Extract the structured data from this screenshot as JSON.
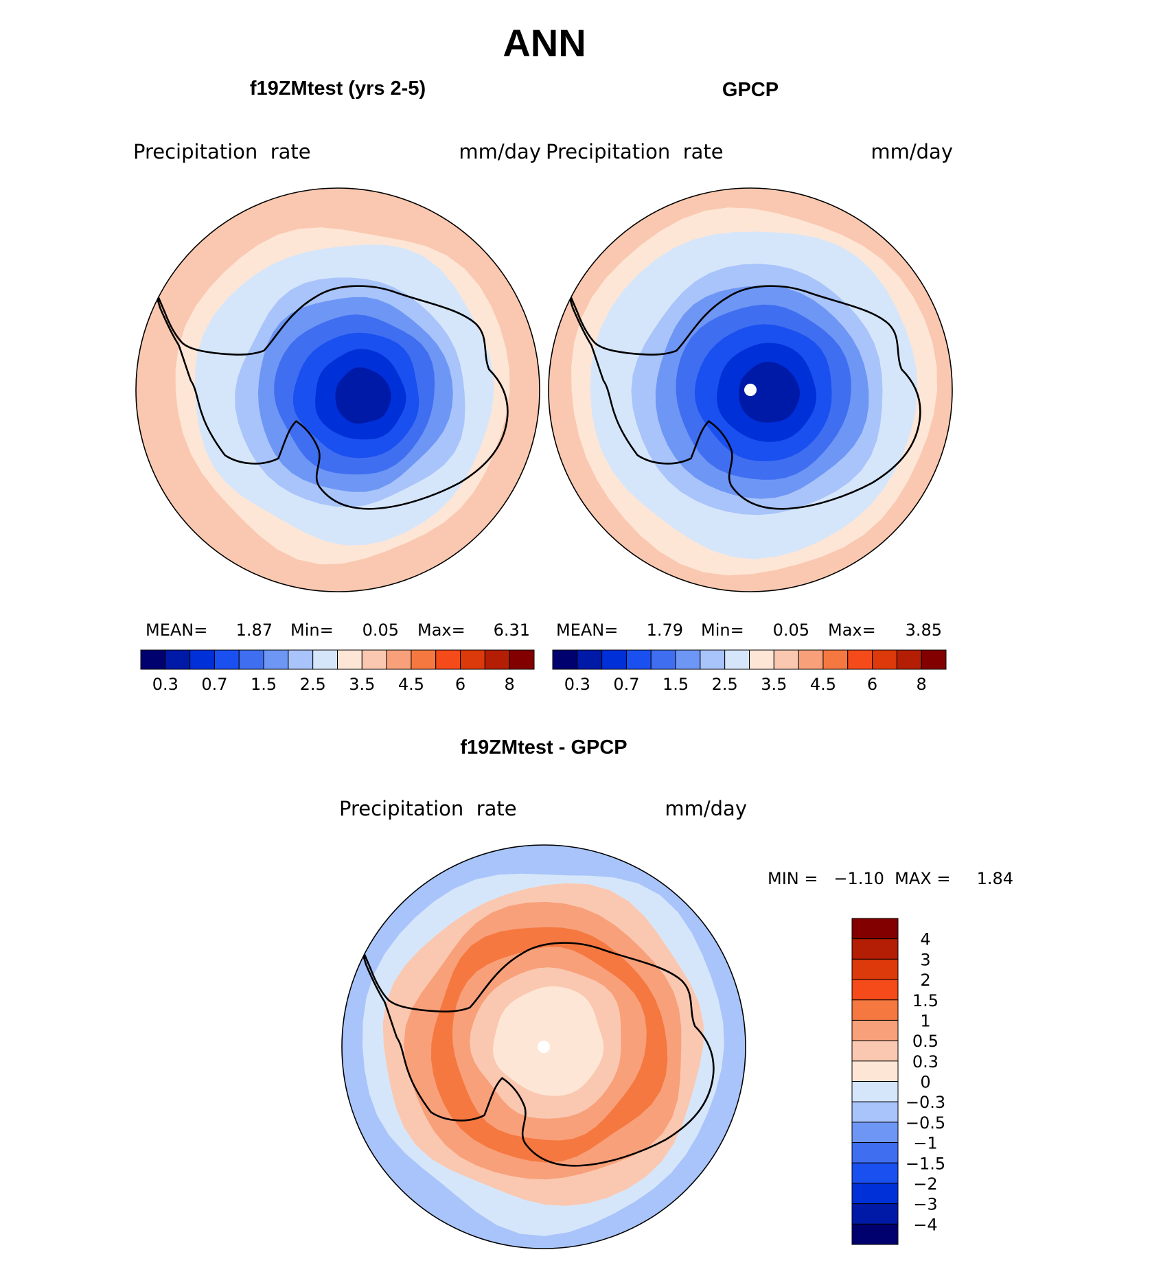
{
  "title": "ANN",
  "palette": {
    "mean_field": [
      "#00006e",
      "#001aa8",
      "#0030d8",
      "#1a4ff0",
      "#3f6ef0",
      "#6e96f5",
      "#a8c4fa",
      "#d6e6fa",
      "#fde6d6",
      "#fac8b0",
      "#f8a07a",
      "#f57840",
      "#f54a1a",
      "#dc3a0a",
      "#b41e05",
      "#820000"
    ],
    "difference": [
      "#00006e",
      "#001aa8",
      "#0030d8",
      "#1a4ff0",
      "#3f6ef0",
      "#6e96f5",
      "#a8c4fa",
      "#d6e6fa",
      "#fde6d6",
      "#fac8b0",
      "#f8a07a",
      "#f57840",
      "#f54a1a",
      "#dc3a0a",
      "#b41e05",
      "#820000"
    ],
    "coastline": "#000000",
    "missing": "#ffffff"
  },
  "panels": {
    "model": {
      "heading": "f19ZMtest (yrs 2-5)",
      "field_label": "Precipitation  rate",
      "units": "mm/day",
      "mean_label": "MEAN=",
      "mean": "1.87",
      "min_label": "Min=",
      "min": "0.05",
      "max_label": "Max=",
      "max": "6.31"
    },
    "obs": {
      "heading": "GPCP",
      "field_label": "Precipitation  rate",
      "units": "mm/day",
      "mean_label": "MEAN=",
      "mean": "1.79",
      "min_label": "Min=",
      "min": "0.05",
      "max_label": "Max=",
      "max": "3.85"
    },
    "diff": {
      "heading": "f19ZMtest - GPCP",
      "field_label": "Precipitation  rate",
      "units": "mm/day",
      "minmax_text": "MIN =   −1.10  MAX =     1.84"
    }
  },
  "chart_data": [
    {
      "type": "heatmap",
      "title": "f19ZMtest (yrs 2-5)",
      "subtitle": "Precipitation rate",
      "units": "mm/day",
      "projection": "South polar stereographic",
      "contour_levels": [
        0.2,
        0.3,
        0.5,
        0.7,
        1,
        1.5,
        2,
        2.5,
        3,
        3.5,
        4,
        4.5,
        5,
        6,
        7,
        8
      ],
      "colorbar_tick_labels": [
        "0.3",
        "0.7",
        "1.5",
        "2.5",
        "3.5",
        "4.5",
        "6",
        "8"
      ],
      "stats": {
        "mean": 1.87,
        "min": 0.05,
        "max": 6.31
      },
      "rings_outer_to_inner": [
        3.2,
        3.2,
        2.8,
        2.4,
        2.0,
        1.6,
        1.2,
        0.9,
        0.6,
        0.4,
        0.2
      ]
    },
    {
      "type": "heatmap",
      "title": "GPCP",
      "subtitle": "Precipitation rate",
      "units": "mm/day",
      "projection": "South polar stereographic",
      "contour_levels": [
        0.2,
        0.3,
        0.5,
        0.7,
        1,
        1.5,
        2,
        2.5,
        3,
        3.5,
        4,
        4.5,
        5,
        6,
        7,
        8
      ],
      "colorbar_tick_labels": [
        "0.3",
        "0.7",
        "1.5",
        "2.5",
        "3.5",
        "4.5",
        "6",
        "8"
      ],
      "stats": {
        "mean": 1.79,
        "min": 0.05,
        "max": 3.85
      },
      "rings_outer_to_inner": [
        3.2,
        2.8,
        2.4,
        2.0,
        1.6,
        1.2,
        0.9,
        0.6,
        0.4,
        0.2
      ]
    },
    {
      "type": "heatmap",
      "title": "f19ZMtest - GPCP",
      "subtitle": "Precipitation rate",
      "units": "mm/day",
      "projection": "South polar stereographic",
      "contour_levels": [
        -5,
        -4,
        -3,
        -2,
        -1.5,
        -1,
        -0.5,
        -0.3,
        0,
        0.3,
        0.5,
        1,
        1.5,
        2,
        3,
        4
      ],
      "colorbar_tick_labels": [
        "4",
        "3",
        "2",
        "1.5",
        "1",
        "0.5",
        "0.3",
        "0",
        "−0.3",
        "−0.5",
        "−1",
        "−1.5",
        "−2",
        "−3",
        "−4"
      ],
      "stats": {
        "min": -1.1,
        "max": 1.84
      },
      "rings_outer_to_inner": [
        -0.7,
        -0.4,
        0.2,
        0.4,
        0.7,
        0.4,
        0.15,
        -0.1,
        -0.1
      ]
    }
  ]
}
